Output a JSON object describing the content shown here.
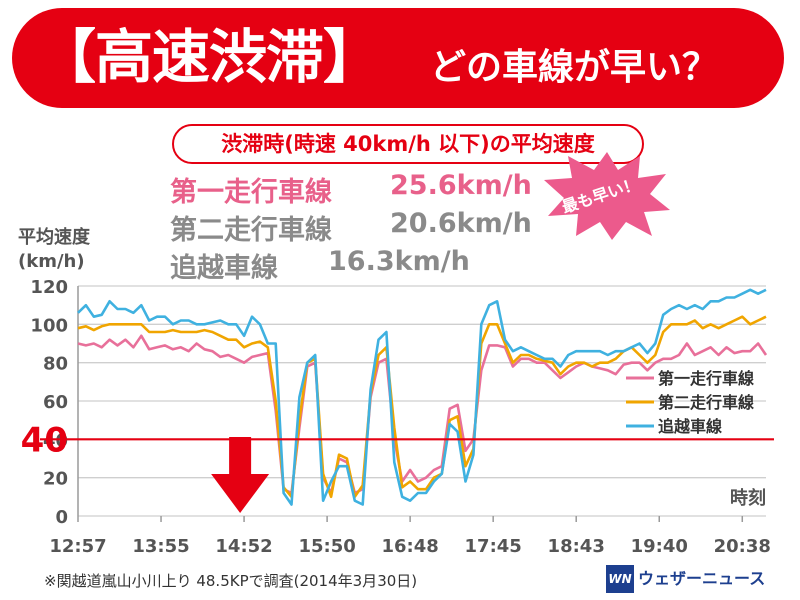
{
  "title": {
    "main": "【高速渋滞】",
    "sub": "どの車線が早い？"
  },
  "subtitle": "渋滞時(時速 40km/h 以下)の平均速度",
  "averages": [
    {
      "lane": "第一走行車線",
      "value": "25.6km/h",
      "color": "#e8608a"
    },
    {
      "lane": "第二走行車線",
      "value": "20.6km/h",
      "color": "#8a8a8a"
    },
    {
      "lane": "追越車線",
      "value": "16.3km/h",
      "color": "#8a8a8a"
    }
  ],
  "badge": "最も早い！",
  "footnote": "※関越道嵐山小川上り 48.5KPで調査(2014年3月30日)",
  "logo": {
    "mark": "WN",
    "text": "ウェザーニュース"
  },
  "chart_data": {
    "type": "line",
    "title": "",
    "ylabel": [
      "平均速度",
      "(km/h)"
    ],
    "xlabel": "時刻",
    "ylim": [
      0,
      120
    ],
    "yticks": [
      0,
      20,
      40,
      60,
      80,
      100,
      120
    ],
    "xlim": [
      0,
      87
    ],
    "xticks": [
      {
        "label": "12:57",
        "pos": 0
      },
      {
        "label": "13:55",
        "pos": 10.5
      },
      {
        "label": "14:52",
        "pos": 21
      },
      {
        "label": "15:50",
        "pos": 31.5
      },
      {
        "label": "16:48",
        "pos": 42
      },
      {
        "label": "17:45",
        "pos": 52.5
      },
      {
        "label": "18:43",
        "pos": 63
      },
      {
        "label": "19:40",
        "pos": 73.5
      },
      {
        "label": "20:38",
        "pos": 84
      }
    ],
    "reference_line": {
      "value": 40,
      "label": "40",
      "color": "#e50012"
    },
    "annotation_arrow": {
      "x": 20.5,
      "color": "#e50012"
    },
    "legend_position": "right-middle",
    "series": [
      {
        "name": "第一走行車線",
        "color": "#e8709a",
        "values": [
          90,
          89,
          90,
          88,
          92,
          89,
          92,
          88,
          94,
          87,
          88,
          89,
          87,
          88,
          86,
          90,
          87,
          86,
          83,
          84,
          82,
          80,
          83,
          84,
          85,
          55,
          14,
          12,
          46,
          78,
          80,
          20,
          12,
          30,
          28,
          12,
          14,
          62,
          80,
          82,
          40,
          18,
          24,
          18,
          20,
          24,
          26,
          56,
          58,
          34,
          40,
          76,
          89,
          89,
          88,
          78,
          82,
          82,
          80,
          80,
          76,
          72,
          75,
          78,
          80,
          78,
          77,
          76,
          74,
          79,
          80,
          80,
          76,
          80,
          82,
          82,
          84,
          90,
          84,
          86,
          88,
          84,
          88,
          85,
          86,
          86,
          90,
          84
        ]
      },
      {
        "name": "第二走行車線",
        "color": "#f0a500",
        "values": [
          98,
          99,
          97,
          99,
          100,
          100,
          100,
          100,
          100,
          96,
          96,
          96,
          97,
          96,
          96,
          96,
          97,
          96,
          94,
          92,
          92,
          88,
          90,
          91,
          88,
          60,
          15,
          10,
          50,
          80,
          82,
          22,
          10,
          32,
          30,
          10,
          16,
          64,
          84,
          88,
          46,
          15,
          18,
          14,
          14,
          20,
          22,
          50,
          52,
          26,
          35,
          90,
          100,
          100,
          90,
          80,
          84,
          84,
          82,
          81,
          80,
          74,
          78,
          80,
          80,
          78,
          80,
          80,
          82,
          86,
          88,
          84,
          80,
          84,
          96,
          100,
          100,
          100,
          102,
          98,
          100,
          98,
          100,
          102,
          104,
          100,
          102,
          104
        ]
      },
      {
        "name": "追越車線",
        "color": "#3fb1e0",
        "values": [
          106,
          110,
          104,
          105,
          112,
          108,
          108,
          106,
          110,
          102,
          104,
          104,
          100,
          102,
          102,
          100,
          100,
          101,
          102,
          100,
          100,
          94,
          104,
          100,
          90,
          90,
          12,
          6,
          62,
          80,
          84,
          8,
          18,
          26,
          26,
          8,
          6,
          66,
          92,
          96,
          28,
          10,
          8,
          12,
          12,
          18,
          22,
          48,
          44,
          18,
          32,
          100,
          110,
          112,
          92,
          86,
          88,
          86,
          84,
          82,
          82,
          78,
          84,
          86,
          86,
          86,
          86,
          84,
          86,
          86,
          88,
          90,
          85,
          90,
          105,
          108,
          110,
          108,
          110,
          108,
          112,
          112,
          114,
          114,
          116,
          118,
          116,
          118
        ]
      }
    ]
  }
}
